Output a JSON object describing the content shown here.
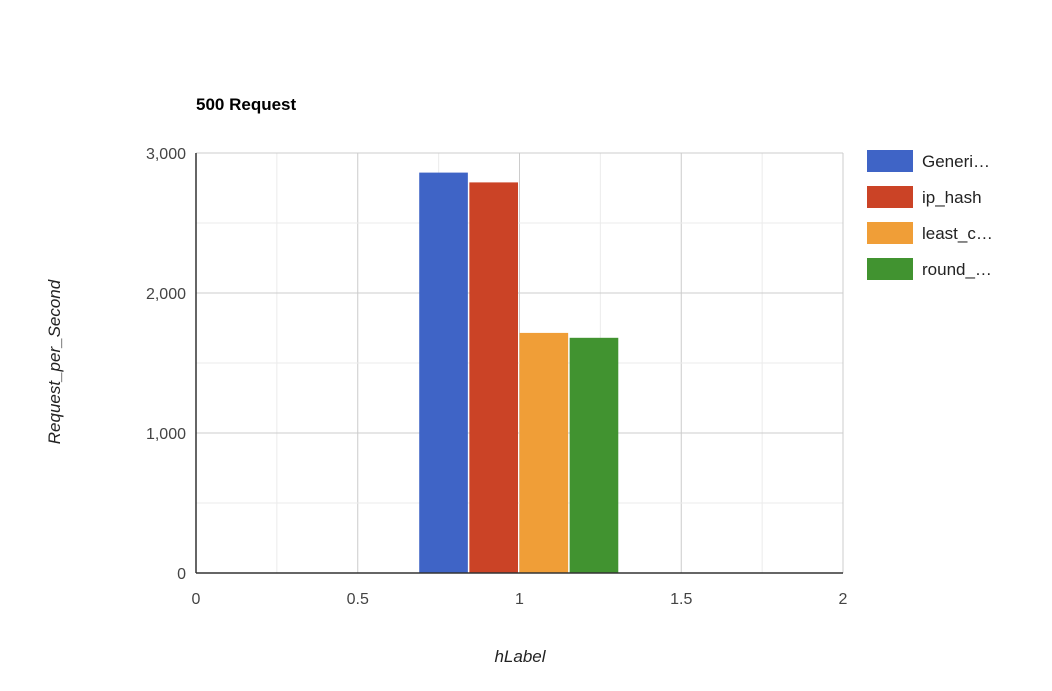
{
  "chart_data": {
    "type": "bar",
    "title": "500 Request",
    "xlabel": "hLabel",
    "ylabel": "Request_per_Second",
    "xlim": [
      0,
      2
    ],
    "ylim": [
      0,
      3000
    ],
    "x_ticks": [
      "0",
      "0.5",
      "1",
      "1.5",
      "2"
    ],
    "y_ticks": [
      "0",
      "1,000",
      "2,000",
      "3,000"
    ],
    "grid": true,
    "legend_position": "right",
    "x": 1,
    "series": [
      {
        "name": "Generi…",
        "value": 2860,
        "color": "#3f64c6"
      },
      {
        "name": "ip_hash",
        "value": 2790,
        "color": "#cb4326"
      },
      {
        "name": "least_c…",
        "value": 1715,
        "color": "#f09e37"
      },
      {
        "name": "round_…",
        "value": 1680,
        "color": "#419330"
      }
    ]
  }
}
